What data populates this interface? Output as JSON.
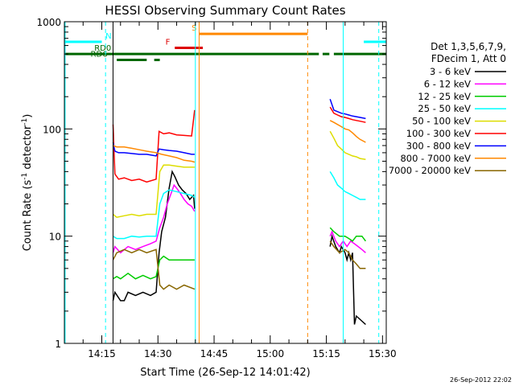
{
  "chart_data": {
    "type": "line",
    "title": "HESSI Observing Summary Count Rates",
    "xlabel": "Start Time (26-Sep-12 14:01:42)",
    "ylabel_main": "Count Rate (s",
    "ylabel_sup1": "-1",
    "ylabel_mid": " detector",
    "ylabel_sup2": "-1",
    "ylabel_end": ")",
    "yscale": "log",
    "ylim": [
      1,
      1000
    ],
    "xlim": [
      5,
      91
    ],
    "xticks": [
      {
        "t": 15,
        "label": "14:15"
      },
      {
        "t": 30,
        "label": "14:30"
      },
      {
        "t": 45,
        "label": "14:45"
      },
      {
        "t": 60,
        "label": "15:00"
      },
      {
        "t": 75,
        "label": "15:15"
      },
      {
        "t": 90,
        "label": "15:30"
      }
    ],
    "yticks": [
      {
        "v": 1,
        "label": "1"
      },
      {
        "v": 10,
        "label": "10"
      },
      {
        "v": 100,
        "label": "100"
      },
      {
        "v": 1000,
        "label": "1000"
      }
    ],
    "footer": "26-Sep-2012 22:02",
    "legend": {
      "header1": "Det 1,3,5,6,7,9,",
      "header2": "FDecim 1, Att 0",
      "placement": "right"
    },
    "series": [
      {
        "name": "3 - 6 keV",
        "color": "#000000",
        "segments": [
          [
            [
              18,
              2.5
            ],
            [
              18.5,
              3
            ],
            [
              20,
              2.5
            ],
            [
              21,
              2.5
            ],
            [
              22,
              3
            ],
            [
              24,
              2.8
            ],
            [
              26,
              3
            ],
            [
              28,
              2.8
            ],
            [
              29.5,
              3
            ],
            [
              30.3,
              7
            ],
            [
              31,
              11
            ],
            [
              32,
              15
            ],
            [
              33,
              28
            ],
            [
              33.8,
              40
            ],
            [
              34.5,
              36
            ],
            [
              35.5,
              30
            ],
            [
              36.5,
              27
            ],
            [
              37.5,
              25
            ],
            [
              38.5,
              22
            ],
            [
              39.5,
              24
            ],
            [
              39.8,
              18
            ]
          ],
          [
            [
              76,
              8
            ],
            [
              76.5,
              10
            ],
            [
              77.5,
              8
            ],
            [
              78.5,
              7
            ],
            [
              79,
              8
            ],
            [
              80,
              7
            ],
            [
              80.5,
              6
            ],
            [
              81,
              7
            ],
            [
              81.5,
              6
            ],
            [
              82,
              7
            ],
            [
              82.5,
              1.5
            ],
            [
              83,
              1.8
            ],
            [
              85.5,
              1.5
            ]
          ]
        ]
      },
      {
        "name": "6 - 12 keV",
        "color": "#ff00ff",
        "segments": [
          [
            [
              18,
              7
            ],
            [
              18.5,
              8
            ],
            [
              20,
              7
            ],
            [
              22,
              8
            ],
            [
              24,
              7.5
            ],
            [
              26,
              8
            ],
            [
              28,
              8.5
            ],
            [
              29.5,
              9
            ],
            [
              30.5,
              12
            ],
            [
              31.5,
              15
            ],
            [
              32.5,
              20
            ],
            [
              33.5,
              25
            ],
            [
              34.3,
              30
            ],
            [
              35,
              28
            ],
            [
              36,
              25
            ],
            [
              37,
              22
            ],
            [
              38,
              20
            ],
            [
              39,
              19
            ],
            [
              39.8,
              17
            ]
          ],
          [
            [
              76,
              10
            ],
            [
              76.5,
              11
            ],
            [
              77.5,
              9
            ],
            [
              78.5,
              8
            ],
            [
              79.5,
              9
            ],
            [
              80.5,
              8
            ],
            [
              81.5,
              9
            ],
            [
              82.5,
              8.5
            ],
            [
              83.5,
              8
            ],
            [
              84.5,
              7.5
            ],
            [
              85.5,
              7
            ]
          ]
        ]
      },
      {
        "name": "12 - 25 keV",
        "color": "#00cc00",
        "segments": [
          [
            [
              18,
              4
            ],
            [
              19,
              4.2
            ],
            [
              20,
              4
            ],
            [
              22,
              4.5
            ],
            [
              24,
              4
            ],
            [
              26,
              4.3
            ],
            [
              28,
              4
            ],
            [
              29.5,
              4.2
            ],
            [
              30.5,
              6
            ],
            [
              31.5,
              6.5
            ],
            [
              33,
              6
            ],
            [
              35,
              6
            ],
            [
              37,
              6
            ],
            [
              39.8,
              6
            ]
          ],
          [
            [
              76,
              12
            ],
            [
              77,
              11
            ],
            [
              78.5,
              10
            ],
            [
              80,
              10
            ],
            [
              81,
              9.5
            ],
            [
              82,
              9
            ],
            [
              83,
              10
            ],
            [
              84.5,
              10
            ],
            [
              85.5,
              9
            ]
          ]
        ]
      },
      {
        "name": "25 - 50 keV",
        "color": "#00ffff",
        "segments": [
          [
            [
              18,
              10
            ],
            [
              19,
              9.5
            ],
            [
              21,
              9.5
            ],
            [
              23,
              10
            ],
            [
              25,
              9.8
            ],
            [
              27,
              10
            ],
            [
              29.5,
              10
            ],
            [
              30.5,
              20
            ],
            [
              31.5,
              25
            ],
            [
              33,
              27
            ],
            [
              35,
              26
            ],
            [
              37,
              25
            ],
            [
              39,
              24
            ],
            [
              39.8,
              23
            ]
          ],
          [
            [
              76,
              40
            ],
            [
              77,
              35
            ],
            [
              78,
              30
            ],
            [
              79,
              28
            ],
            [
              80,
              26
            ],
            [
              81,
              25
            ],
            [
              82,
              24
            ],
            [
              83,
              23
            ],
            [
              84,
              22
            ],
            [
              85.5,
              22
            ]
          ]
        ]
      },
      {
        "name": "50 - 100 keV",
        "color": "#dddd00",
        "segments": [
          [
            [
              18,
              16
            ],
            [
              19,
              15
            ],
            [
              21,
              15.5
            ],
            [
              23,
              16
            ],
            [
              25,
              15.5
            ],
            [
              27,
              16
            ],
            [
              29.5,
              16
            ],
            [
              30.5,
              40
            ],
            [
              31.5,
              46
            ],
            [
              33,
              46
            ],
            [
              35,
              45
            ],
            [
              37,
              44
            ],
            [
              39.8,
              44
            ]
          ],
          [
            [
              76,
              95
            ],
            [
              77,
              82
            ],
            [
              78,
              70
            ],
            [
              79,
              65
            ],
            [
              80,
              60
            ],
            [
              81,
              58
            ],
            [
              82,
              56
            ],
            [
              83,
              55
            ],
            [
              84,
              53
            ],
            [
              85.5,
              52
            ]
          ]
        ]
      },
      {
        "name": "100 - 300 keV",
        "color": "#ff0000",
        "segments": [
          [
            [
              18,
              110
            ],
            [
              18.5,
              38
            ],
            [
              19.5,
              34
            ],
            [
              21,
              35
            ],
            [
              23,
              33
            ],
            [
              25,
              34
            ],
            [
              27,
              32
            ],
            [
              29.5,
              34
            ],
            [
              30.3,
              95
            ],
            [
              31.5,
              90
            ],
            [
              33,
              92
            ],
            [
              35,
              88
            ],
            [
              37,
              87
            ],
            [
              39,
              86
            ],
            [
              39.8,
              150
            ]
          ],
          [
            [
              76,
              160
            ],
            [
              77,
              140
            ],
            [
              78,
              135
            ],
            [
              79,
              130
            ],
            [
              80,
              128
            ],
            [
              81,
              125
            ],
            [
              82,
              122
            ],
            [
              83,
              120
            ],
            [
              84,
              118
            ],
            [
              85.5,
              115
            ]
          ]
        ]
      },
      {
        "name": "300 - 800 keV",
        "color": "#0000ff",
        "segments": [
          [
            [
              18,
              75
            ],
            [
              18.5,
              62
            ],
            [
              19.5,
              60
            ],
            [
              21,
              60
            ],
            [
              23,
              59
            ],
            [
              25,
              58
            ],
            [
              27,
              58
            ],
            [
              29.5,
              56
            ],
            [
              30.3,
              65
            ],
            [
              31.5,
              64
            ],
            [
              33,
              63
            ],
            [
              35,
              62
            ],
            [
              37,
              60
            ],
            [
              39,
              58
            ],
            [
              39.8,
              58
            ]
          ],
          [
            [
              76,
              190
            ],
            [
              77,
              150
            ],
            [
              78,
              145
            ],
            [
              79,
              140
            ],
            [
              80,
              138
            ],
            [
              81,
              135
            ],
            [
              82,
              132
            ],
            [
              83,
              130
            ],
            [
              84,
              128
            ],
            [
              85.5,
              125
            ]
          ]
        ]
      },
      {
        "name": "800 - 7000 keV",
        "color": "#ff8800",
        "segments": [
          [
            [
              18,
              70
            ],
            [
              19,
              68
            ],
            [
              21,
              68
            ],
            [
              23,
              66
            ],
            [
              25,
              64
            ],
            [
              27,
              62
            ],
            [
              29.5,
              60
            ],
            [
              31,
              58
            ],
            [
              33,
              56
            ],
            [
              35,
              54
            ],
            [
              37,
              51
            ],
            [
              39,
              50
            ],
            [
              39.8,
              49
            ]
          ],
          [
            [
              76,
              120
            ],
            [
              77,
              115
            ],
            [
              78,
              110
            ],
            [
              79,
              105
            ],
            [
              80,
              100
            ],
            [
              81,
              98
            ],
            [
              82,
              92
            ],
            [
              83,
              85
            ],
            [
              84,
              80
            ],
            [
              85.5,
              75
            ]
          ]
        ]
      },
      {
        "name": "7000 - 20000 keV",
        "color": "#886600",
        "segments": [
          [
            [
              18,
              6
            ],
            [
              19,
              7
            ],
            [
              21,
              7.5
            ],
            [
              23,
              7
            ],
            [
              25,
              7.5
            ],
            [
              27,
              7
            ],
            [
              29.5,
              7.5
            ],
            [
              30.5,
              3.5
            ],
            [
              31.5,
              3.2
            ],
            [
              33,
              3.5
            ],
            [
              35,
              3.2
            ],
            [
              37,
              3.5
            ],
            [
              39.8,
              3.2
            ]
          ],
          [
            [
              76,
              9
            ],
            [
              77,
              8
            ],
            [
              78.5,
              7
            ],
            [
              80,
              7.5
            ],
            [
              81,
              7
            ],
            [
              82,
              6
            ],
            [
              83,
              5.5
            ],
            [
              84,
              5
            ],
            [
              85.5,
              5
            ]
          ]
        ]
      }
    ],
    "flags": [
      {
        "label": "N",
        "color": "#00ffff",
        "segments": [
          [
            5,
            15
          ],
          [
            85,
            91
          ]
        ],
        "level": 650,
        "label_at": 16
      },
      {
        "label": "S",
        "color": "#ff8800",
        "segments": [
          [
            41,
            70
          ]
        ],
        "level": 770,
        "label_at": 39
      },
      {
        "label": "F",
        "color": "#dd0000",
        "segments": [
          [
            34.5,
            42
          ]
        ],
        "level": 570,
        "label_at": 32
      },
      {
        "label": "RD0",
        "color": "#006600",
        "segments": [
          [
            5,
            73
          ],
          [
            74,
            75.8
          ],
          [
            77,
            91
          ]
        ],
        "level": 500,
        "label_at": 13
      },
      {
        "label": "RD6",
        "color": "#006600",
        "segments": [
          [
            19,
            27
          ],
          [
            29,
            30.5
          ]
        ],
        "level": 440,
        "label_at": 12
      }
    ],
    "vlines": [
      {
        "t": 5.2,
        "color": "#00ffff",
        "style": "solid"
      },
      {
        "t": 18,
        "color": "#000000",
        "style": "solid"
      },
      {
        "t": 16,
        "color": "#00ffff",
        "style": "dashed"
      },
      {
        "t": 40,
        "color": "#00ffff",
        "style": "solid"
      },
      {
        "t": 41,
        "color": "#ff8800",
        "style": "solid"
      },
      {
        "t": 70,
        "color": "#ff8800",
        "style": "dashed"
      },
      {
        "t": 79.5,
        "color": "#00ffff",
        "style": "solid"
      },
      {
        "t": 89,
        "color": "#00ffff",
        "style": "dashed"
      }
    ],
    "grid": false
  }
}
